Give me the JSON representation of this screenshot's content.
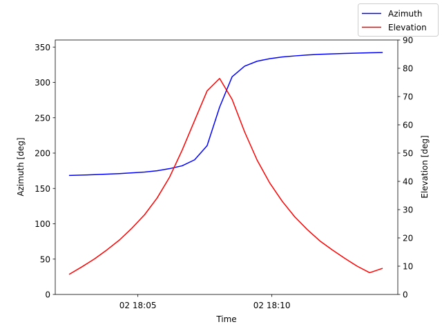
{
  "chart_data": {
    "type": "line",
    "xlabel": "Time",
    "x_ticks": [
      "02 18:05",
      "02 18:10"
    ],
    "x": [
      "18:02:27",
      "18:02:55",
      "18:03:23",
      "18:03:51",
      "18:04:19",
      "18:04:47",
      "18:05:15",
      "18:05:43",
      "18:06:11",
      "18:06:39",
      "18:07:07",
      "18:07:35",
      "18:08:03",
      "18:08:31",
      "18:08:59",
      "18:09:27",
      "18:09:55",
      "18:10:23",
      "18:10:51",
      "18:11:19",
      "18:11:47",
      "18:12:15",
      "18:12:43",
      "18:13:11",
      "18:13:39",
      "18:14:07"
    ],
    "xlim": [
      "18:01:55",
      "18:14:42"
    ],
    "y_axes": [
      {
        "side": "left",
        "label": "Azimuth [deg]",
        "lim": [
          0,
          360
        ],
        "ticks": [
          0,
          50,
          100,
          150,
          200,
          250,
          300,
          350
        ]
      },
      {
        "side": "right",
        "label": "Elevation [deg]",
        "lim": [
          0,
          90
        ],
        "ticks": [
          0,
          10,
          20,
          30,
          40,
          50,
          60,
          70,
          80,
          90
        ]
      }
    ],
    "series": [
      {
        "name": "Azimuth",
        "axis": "left",
        "color": "#0000ff",
        "values": [
          168.4,
          168.9,
          169.5,
          170.2,
          171.0,
          172.1,
          173.2,
          175.0,
          178.0,
          182.0,
          190.5,
          210.5,
          265.0,
          308.0,
          323.0,
          330.0,
          333.5,
          336.0,
          337.5,
          338.8,
          339.8,
          340.4,
          341.0,
          341.5,
          342.0,
          342.3
        ]
      },
      {
        "name": "Elevation",
        "axis": "right",
        "color": "#ff0000",
        "values": [
          7.2,
          9.8,
          12.6,
          15.8,
          19.3,
          23.5,
          28.2,
          34.1,
          41.5,
          51.0,
          61.5,
          72.0,
          76.4,
          69.0,
          57.5,
          47.5,
          39.5,
          33.0,
          27.5,
          23.0,
          19.0,
          15.8,
          12.8,
          10.0,
          7.7,
          9.2
        ]
      }
    ],
    "legend": "top-right",
    "grid": false
  }
}
